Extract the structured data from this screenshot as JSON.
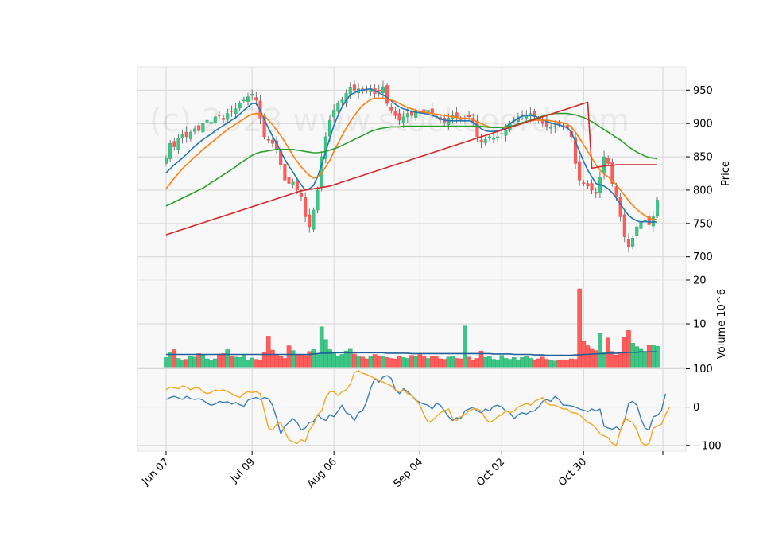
{
  "chart_data": {
    "type": "candlestick",
    "watermark": "(c) 2023 www.stockcoord.com",
    "x_tick_labels": [
      "Jun 07",
      "Jul 09",
      "Aug 06",
      "Sep 04",
      "Oct 02",
      "Oct 30"
    ],
    "x_tick_index": [
      0,
      21,
      41,
      62,
      82,
      102
    ],
    "n_days": 121,
    "price_panel": {
      "ylabel": "Price",
      "ylim": [
        665,
        985
      ],
      "yticks": [
        700,
        750,
        800,
        850,
        900,
        950
      ],
      "closes": [
        848,
        870,
        865,
        878,
        883,
        880,
        887,
        892,
        889,
        900,
        905,
        902,
        910,
        912,
        906,
        915,
        918,
        922,
        930,
        935,
        940,
        944,
        935,
        908,
        880,
        875,
        870,
        862,
        838,
        815,
        810,
        812,
        800,
        790,
        760,
        745,
        770,
        800,
        850,
        880,
        905,
        920,
        930,
        935,
        945,
        955,
        950,
        952,
        948,
        950,
        952,
        945,
        948,
        955,
        930,
        920,
        912,
        905,
        910,
        915,
        912,
        918,
        916,
        918,
        920,
        916,
        910,
        905,
        902,
        908,
        912,
        910,
        906,
        908,
        910,
        902,
        880,
        872,
        876,
        880,
        878,
        880,
        885,
        890,
        900,
        905,
        910,
        913,
        912,
        915,
        910,
        905,
        900,
        896,
        894,
        896,
        898,
        895,
        893,
        880,
        840,
        815,
        810,
        806,
        800,
        795,
        820,
        850,
        840,
        810,
        790,
        760,
        730,
        715,
        728,
        745,
        752,
        755,
        748,
        760,
        785
      ],
      "series": [
        {
          "name": "MA short",
          "color": "#1f77b4",
          "values": [
            826,
            832,
            838,
            843,
            848,
            854,
            860,
            866,
            871,
            876,
            880,
            884,
            889,
            893,
            897,
            901,
            905,
            909,
            914,
            920,
            925,
            930,
            930,
            920,
            906,
            893,
            881,
            870,
            858,
            846,
            836,
            827,
            817,
            808,
            800,
            802,
            807,
            820,
            838,
            858,
            878,
            897,
            912,
            925,
            935,
            943,
            946,
            949,
            950,
            951,
            952,
            949,
            946,
            943,
            939,
            934,
            929,
            925,
            922,
            920,
            918,
            917,
            916,
            915,
            914,
            912,
            910,
            907,
            905,
            904,
            904,
            904,
            904,
            904,
            904,
            902,
            897,
            892,
            889,
            888,
            888,
            889,
            891,
            895,
            900,
            904,
            908,
            911,
            912,
            912,
            911,
            909,
            906,
            903,
            901,
            899,
            898,
            896,
            894,
            887,
            873,
            858,
            843,
            830,
            820,
            810,
            808,
            806,
            802,
            796,
            788,
            779,
            770,
            762,
            757,
            754,
            752,
            753,
            752,
            752,
            752
          ]
        },
        {
          "name": "MA mid",
          "color": "#ff7f0e",
          "values": [
            802,
            810,
            818,
            825,
            832,
            838,
            844,
            850,
            855,
            861,
            866,
            871,
            876,
            881,
            886,
            891,
            895,
            899,
            903,
            907,
            911,
            914,
            915,
            914,
            911,
            905,
            898,
            890,
            882,
            872,
            862,
            852,
            843,
            835,
            828,
            822,
            818,
            820,
            825,
            835,
            845,
            858,
            870,
            882,
            893,
            903,
            912,
            920,
            927,
            932,
            936,
            938,
            938,
            938,
            937,
            935,
            933,
            930,
            927,
            924,
            922,
            920,
            918,
            917,
            916,
            915,
            914,
            913,
            912,
            911,
            910,
            909,
            908,
            908,
            907,
            906,
            903,
            900,
            897,
            895,
            894,
            894,
            894,
            894,
            895,
            897,
            899,
            901,
            903,
            904,
            905,
            905,
            905,
            905,
            904,
            903,
            902,
            901,
            899,
            895,
            887,
            878,
            868,
            858,
            848,
            838,
            830,
            824,
            820,
            814,
            808,
            800,
            792,
            784,
            777,
            771,
            766,
            762,
            758,
            756,
            756
          ]
        },
        {
          "name": "MA long",
          "color": "#2ca02c",
          "values": [
            776,
            779,
            782,
            785,
            788,
            791,
            794,
            797,
            800,
            803,
            807,
            811,
            815,
            819,
            823,
            827,
            831,
            835,
            840,
            844,
            848,
            852,
            855,
            857,
            858,
            859,
            860,
            861,
            861,
            861,
            861,
            861,
            860,
            859,
            858,
            857,
            856,
            856,
            857,
            858,
            860,
            862,
            864,
            867,
            870,
            873,
            876,
            879,
            882,
            885,
            888,
            890,
            892,
            893,
            894,
            895,
            895,
            895,
            896,
            896,
            896,
            896,
            896,
            896,
            896,
            896,
            896,
            896,
            896,
            896,
            896,
            896,
            896,
            896,
            896,
            896,
            896,
            896,
            895,
            894,
            894,
            894,
            894,
            895,
            896,
            897,
            899,
            901,
            903,
            905,
            907,
            909,
            911,
            913,
            914,
            915,
            915,
            915,
            915,
            914,
            913,
            911,
            909,
            906,
            903,
            899,
            895,
            891,
            887,
            883,
            879,
            875,
            870,
            865,
            861,
            857,
            854,
            851,
            849,
            848,
            847
          ]
        },
        {
          "name": "MA 200",
          "color": "#d62728",
          "values": [
            733,
            735,
            737,
            739,
            741,
            743,
            745,
            747,
            749,
            751,
            753,
            755,
            757,
            759,
            761,
            763,
            765,
            767,
            769,
            771,
            773,
            775,
            777,
            779,
            781,
            783,
            785,
            787,
            789,
            791,
            793,
            795,
            797,
            799,
            800,
            801,
            802,
            803,
            804,
            805,
            806,
            808,
            810,
            812,
            814,
            816,
            818,
            820,
            822,
            824,
            826,
            828,
            830,
            832,
            834,
            836,
            838,
            840,
            842,
            844,
            846,
            848,
            850,
            852,
            854,
            856,
            858,
            860,
            862,
            864,
            866,
            868,
            870,
            872,
            874,
            876,
            878,
            880,
            882,
            884,
            886,
            888,
            890,
            892,
            894,
            896,
            898,
            900,
            902,
            904,
            906,
            908,
            910,
            912,
            914,
            916,
            918,
            920,
            922,
            924,
            926,
            928,
            930,
            932,
            833,
            834,
            835,
            836,
            837,
            837,
            838,
            838,
            838,
            838,
            838,
            838,
            838,
            838,
            838,
            838,
            838
          ]
        }
      ]
    },
    "volume_panel": {
      "ylabel": "Volume  10^6",
      "ylim": [
        0,
        20
      ],
      "yticks": [
        10,
        20
      ],
      "volumes": [
        2.3,
        3.5,
        4.1,
        2.1,
        1.8,
        1.9,
        2.6,
        2.4,
        3.2,
        2.9,
        2.0,
        1.7,
        2.0,
        3.1,
        3.2,
        4.1,
        2.7,
        2.4,
        2.3,
        3.0,
        1.8,
        2.2,
        1.9,
        1.6,
        3.5,
        7.2,
        4.0,
        3.0,
        2.5,
        2.1,
        5.0,
        3.9,
        3.0,
        2.9,
        2.8,
        3.7,
        4.1,
        3.0,
        9.3,
        6.4,
        4.1,
        3.5,
        2.7,
        3.0,
        3.8,
        4.2,
        3.1,
        2.6,
        2.4,
        2.0,
        2.6,
        3.0,
        2.7,
        2.6,
        2.3,
        2.1,
        2.0,
        2.5,
        2.3,
        2.1,
        2.8,
        2.5,
        3.0,
        2.7,
        2.1,
        2.5,
        2.6,
        2.0,
        1.9,
        2.4,
        2.6,
        2.1,
        2.0,
        9.5,
        2.4,
        1.6,
        2.1,
        3.8,
        2.3,
        2.6,
        1.9,
        1.8,
        2.8,
        2.1,
        1.9,
        2.3,
        1.8,
        2.3,
        2.5,
        2.1,
        1.6,
        2.0,
        2.4,
        1.9,
        1.7,
        1.5,
        1.6,
        1.8,
        1.6,
        2.0,
        1.9,
        18.0,
        6.0,
        5.0,
        4.2,
        3.9,
        7.8,
        3.5,
        6.8,
        3.7,
        2.9,
        3.2,
        7.0,
        8.5,
        5.6,
        4.8,
        4.2,
        3.4,
        5.2,
        5.1,
        4.9
      ],
      "ma": [
        3.0,
        3.0,
        3.0,
        3.0,
        3.0,
        3.0,
        3.0,
        3.0,
        3.0,
        3.0,
        3.0,
        3.0,
        3.0,
        3.0,
        3.0,
        3.0,
        3.0,
        3.0,
        3.0,
        3.0,
        3.0,
        3.0,
        3.0,
        3.0,
        3.0,
        3.0,
        3.0,
        3.0,
        3.0,
        3.0,
        3.0,
        3.0,
        3.0,
        3.0,
        3.0,
        3.0,
        3.1,
        3.2,
        3.3,
        3.3,
        3.3,
        3.4,
        3.4,
        3.4,
        3.4,
        3.4,
        3.4,
        3.4,
        3.4,
        3.4,
        3.4,
        3.4,
        3.4,
        3.4,
        3.3,
        3.3,
        3.3,
        3.3,
        3.3,
        3.3,
        3.2,
        3.2,
        3.2,
        3.2,
        3.2,
        3.2,
        3.2,
        3.2,
        3.2,
        3.2,
        3.2,
        3.2,
        3.2,
        3.2,
        3.2,
        3.2,
        3.2,
        3.2,
        3.2,
        3.2,
        3.1,
        3.1,
        3.1,
        3.1,
        3.1,
        3.0,
        3.0,
        3.0,
        3.0,
        3.0,
        2.9,
        2.9,
        2.9,
        2.8,
        2.8,
        2.8,
        2.8,
        2.8,
        2.8,
        2.8,
        2.9,
        2.9,
        3.0,
        3.0,
        3.1,
        3.1,
        3.2,
        3.2,
        3.3,
        3.3,
        3.3,
        3.4,
        3.4,
        3.5,
        3.5,
        3.5,
        3.6,
        3.6,
        3.6,
        3.6,
        3.6
      ]
    },
    "oscillator_panel": {
      "ylim": [
        -115,
        103
      ],
      "yticks": [
        100,
        0,
        -100
      ],
      "series": [
        {
          "name": "osc A",
          "color": "#3d7fb5",
          "values": [
            20,
            25,
            28,
            24,
            20,
            28,
            22,
            20,
            22,
            18,
            10,
            5,
            8,
            15,
            12,
            14,
            8,
            12,
            6,
            2,
            18,
            22,
            25,
            20,
            25,
            22,
            5,
            -30,
            -70,
            -50,
            -40,
            -30,
            -40,
            -60,
            -55,
            -40,
            -38,
            -20,
            -30,
            -35,
            -20,
            -25,
            -10,
            5,
            -15,
            -20,
            -35,
            -15,
            -10,
            15,
            50,
            75,
            65,
            78,
            82,
            75,
            45,
            35,
            48,
            40,
            30,
            18,
            12,
            8,
            5,
            -5,
            10,
            5,
            -10,
            -25,
            -35,
            -28,
            -30,
            -10,
            -5,
            0,
            -10,
            -15,
            -5,
            -10,
            2,
            5,
            0,
            -10,
            -15,
            -30,
            -20,
            -15,
            -18,
            -12,
            -10,
            0,
            15,
            20,
            15,
            28,
            20,
            5,
            5,
            3,
            0,
            -5,
            -8,
            -12,
            -5,
            -10,
            -5,
            -50,
            -55,
            -58,
            -52,
            -60,
            -35,
            10,
            15,
            5,
            -30,
            -55,
            -60,
            -25,
            -22,
            -10,
            35
          ]
        },
        {
          "name": "osc B",
          "color": "#f5a623",
          "values": [
            45,
            52,
            50,
            48,
            55,
            52,
            45,
            50,
            50,
            40,
            35,
            38,
            45,
            42,
            45,
            40,
            35,
            30,
            25,
            35,
            40,
            38,
            40,
            35,
            -10,
            -55,
            -60,
            -45,
            -40,
            -65,
            -85,
            -90,
            -95,
            -85,
            -90,
            -60,
            -45,
            -20,
            -10,
            25,
            40,
            40,
            30,
            40,
            45,
            60,
            90,
            95,
            88,
            85,
            80,
            75,
            70,
            65,
            60,
            55,
            45,
            40,
            45,
            35,
            30,
            20,
            5,
            -20,
            -40,
            -35,
            -25,
            -15,
            -10,
            -5,
            -30,
            -35,
            -25,
            -20,
            -10,
            -5,
            -5,
            -10,
            -30,
            -40,
            -35,
            -25,
            -20,
            -10,
            -15,
            -10,
            0,
            5,
            10,
            5,
            15,
            20,
            25,
            10,
            5,
            5,
            0,
            -5,
            -5,
            -15,
            -15,
            -20,
            -30,
            -40,
            -45,
            -55,
            -70,
            -75,
            -80,
            -95,
            -100,
            -60,
            -30,
            -35,
            -40,
            -60,
            -90,
            -100,
            -95,
            -55,
            -50,
            -45,
            -20,
            0
          ]
        }
      ]
    }
  }
}
